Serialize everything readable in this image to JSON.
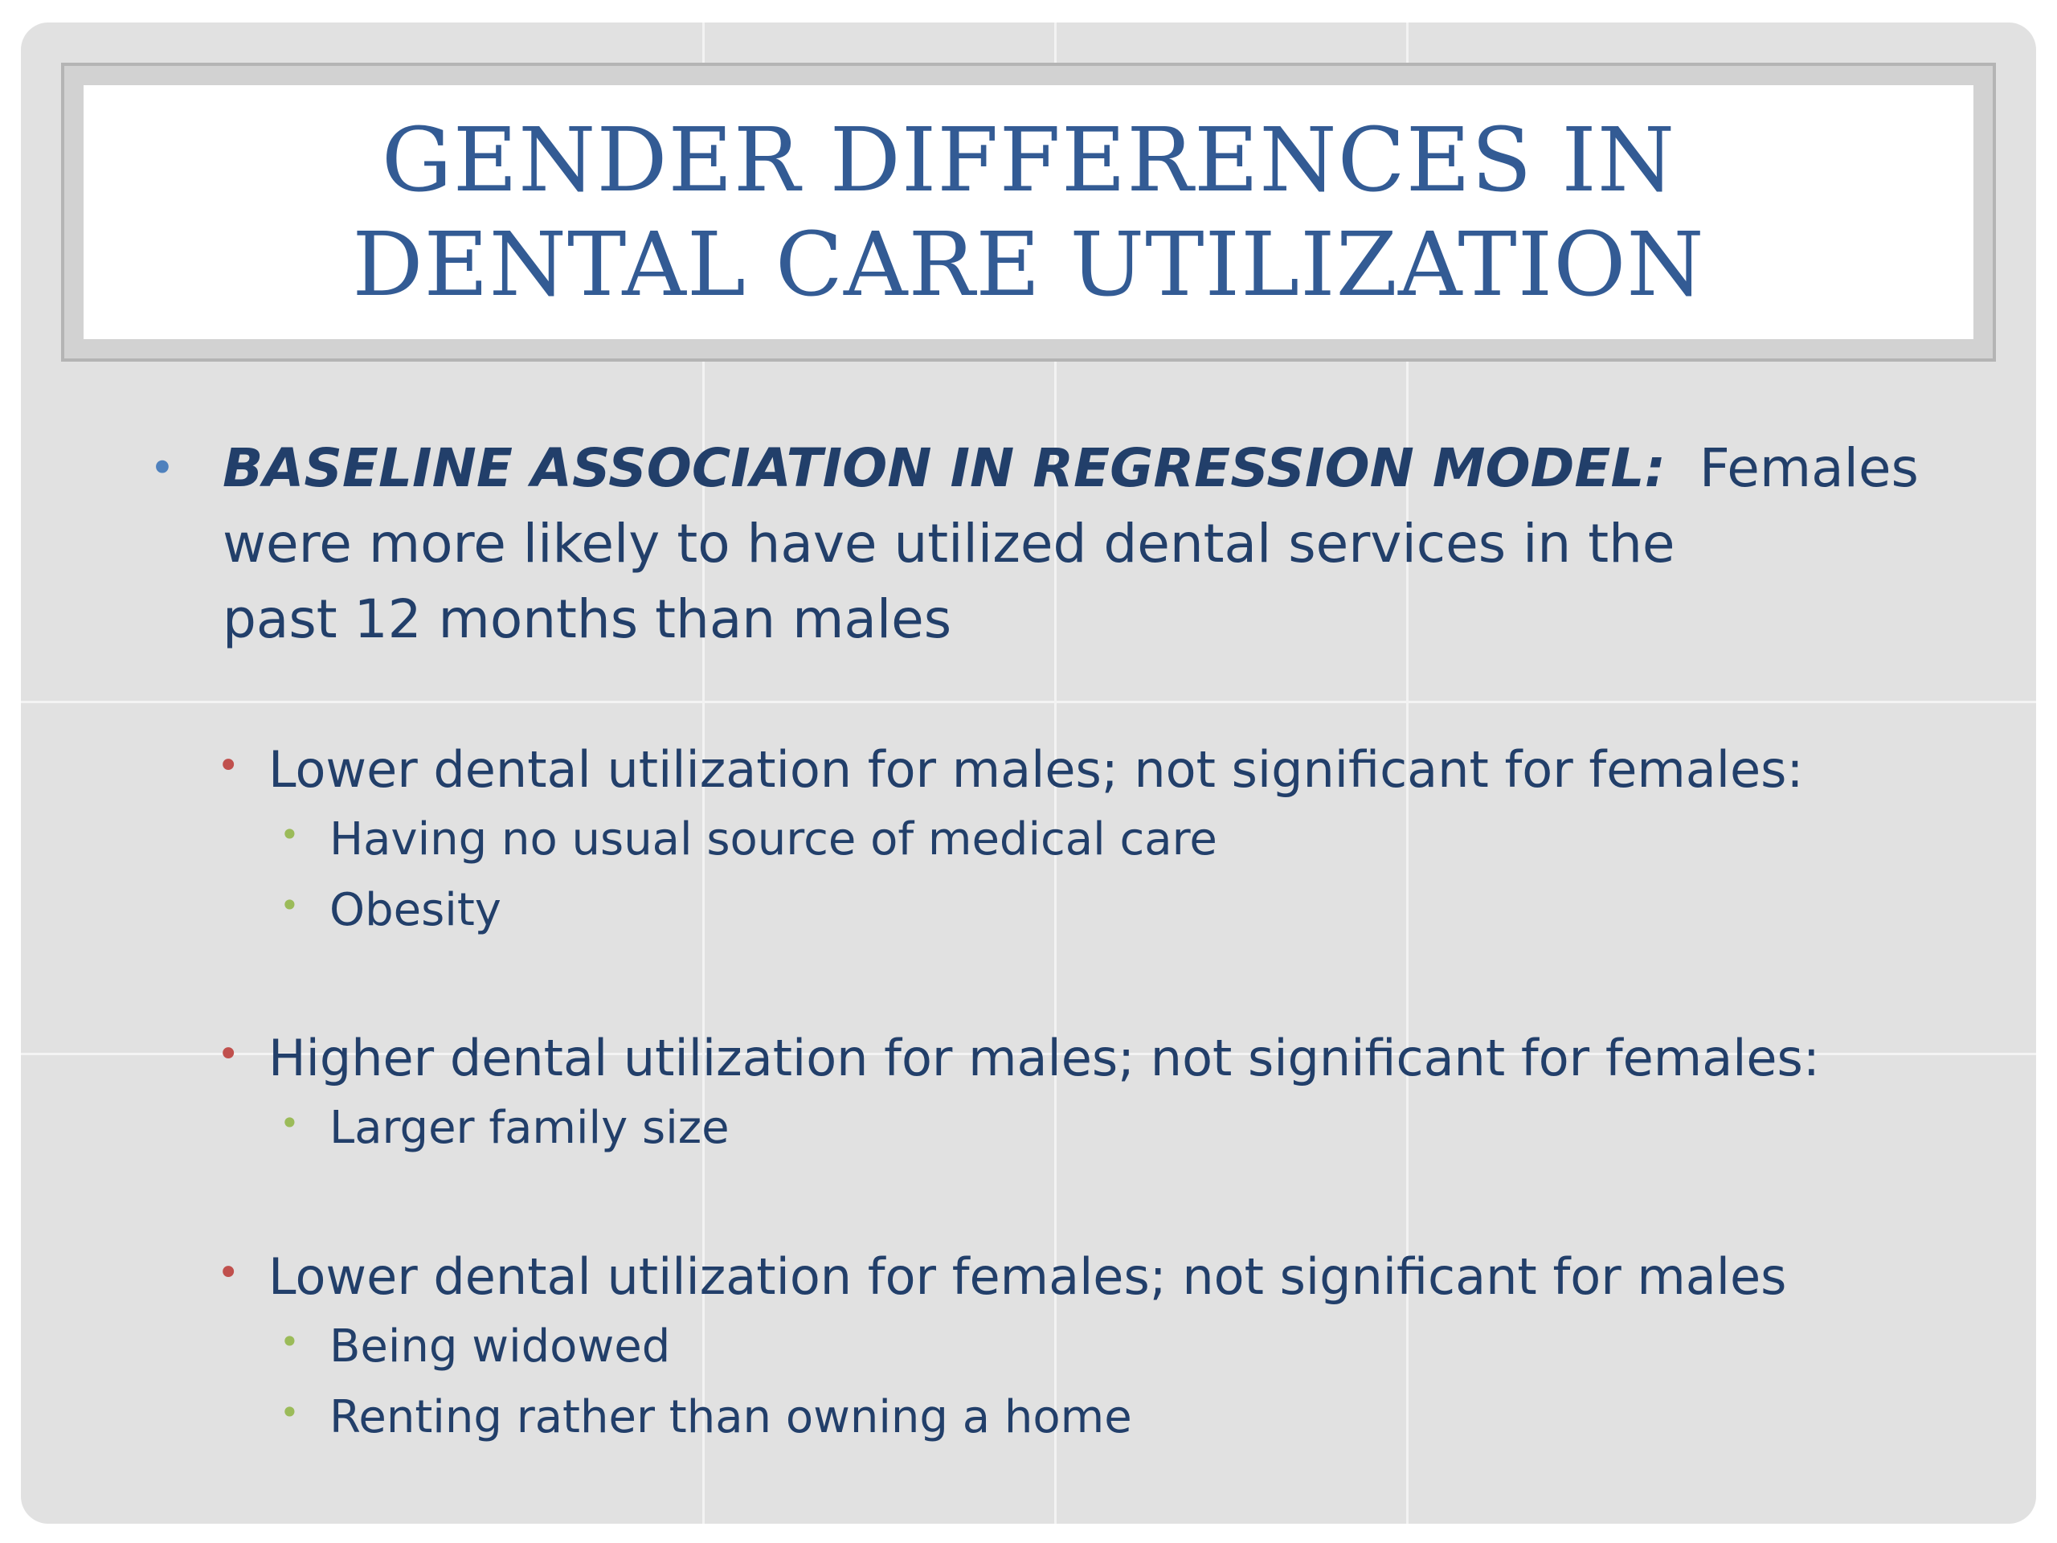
{
  "slide": {
    "title_line1": "GENDER DIFFERENCES IN",
    "title_line2": "DENTAL CARE UTILIZATION",
    "main_bullet": {
      "lead": "BASELINE ASSOCIATION IN REGRESSION MODEL:",
      "line1_rest": "Females",
      "line2": "were more likely to have utilized dental services in the",
      "line3": "past 12 months than males"
    },
    "groups": [
      {
        "heading": "Lower dental utilization for males; not significant for females:",
        "items": [
          "Having no usual source of medical care",
          "Obesity"
        ]
      },
      {
        "heading": "Higher dental utilization for males; not significant for females:",
        "items": [
          "Larger family size"
        ]
      },
      {
        "heading": "Lower dental utilization for females; not significant for males",
        "items": [
          "Being widowed",
          "Renting rather than owning a home"
        ]
      }
    ],
    "bullet_glyph": "•"
  },
  "colors": {
    "title": "#335b94",
    "body_text": "#223f6a",
    "bullet_level1": "#4f81bd",
    "bullet_level2": "#c0504d",
    "bullet_level3": "#9bbb59",
    "slide_background": "#e1e1e1"
  }
}
